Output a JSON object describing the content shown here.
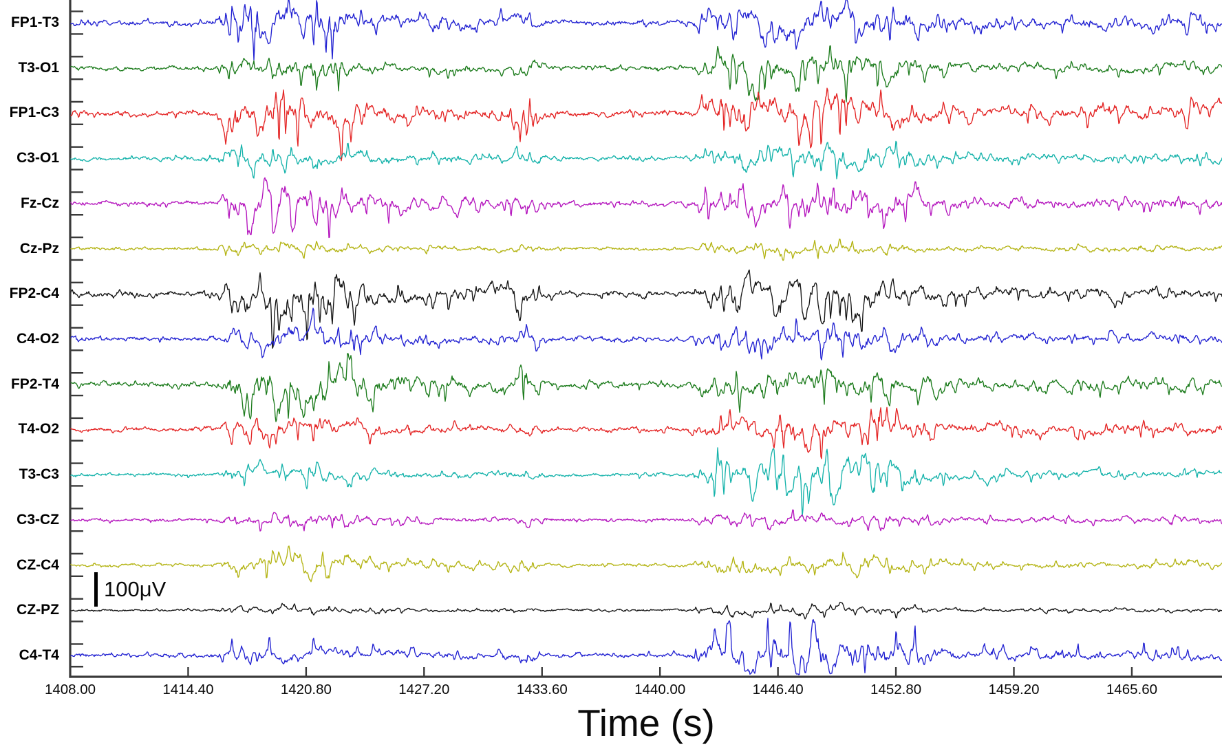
{
  "figure": {
    "xlabel": "Time (s)",
    "scale_bar_label": "100μV"
  },
  "layout_colors": {
    "background": "#ffffff",
    "axis": "#3a3a3a",
    "text": "#0a0a0a"
  },
  "chart_data": {
    "type": "line",
    "subtype": "multichannel-eeg-traces",
    "title": "",
    "xlabel": "Time (s)",
    "x_unit": "s",
    "x_range": [
      1408.0,
      1470.5
    ],
    "x_tick_values": [
      1408.0,
      1414.4,
      1420.8,
      1427.2,
      1433.6,
      1440.0,
      1446.4,
      1452.8,
      1459.2,
      1465.6
    ],
    "x_tick_labels": [
      "1408.00",
      "1414.40",
      "1420.80",
      "1427.20",
      "1433.60",
      "1440.00",
      "1446.40",
      "1452.80",
      "1459.20",
      "1465.60"
    ],
    "x_tick_step_s": 6.4,
    "grid": false,
    "legend": "none",
    "y_scale_bar": {
      "label": "100μV",
      "value_uV": 100
    },
    "channels": [
      {
        "label": "FP1-T3",
        "color": "#2323d2",
        "amp_quiet": 3.0,
        "amp_burst1": 34,
        "amp_burst2": 28,
        "amp_tail": 14.0,
        "spike_bias": 0.0,
        "late_spike": true
      },
      {
        "label": "T3-O1",
        "color": "#1d7c1d",
        "amp_quiet": 2.5,
        "amp_burst1": 20,
        "amp_burst2": 26,
        "amp_tail": 9.0,
        "spike_bias": -0.5,
        "late_spike": false
      },
      {
        "label": "FP1-C3",
        "color": "#e42525",
        "amp_quiet": 3.0,
        "amp_burst1": 38,
        "amp_burst2": 30,
        "amp_tail": 13.0,
        "spike_bias": -0.5,
        "late_spike": true
      },
      {
        "label": "C3-O1",
        "color": "#16b3ab",
        "amp_quiet": 2.5,
        "amp_burst1": 18,
        "amp_burst2": 20,
        "amp_tail": 8.0,
        "spike_bias": 0.0,
        "late_spike": false
      },
      {
        "label": "Fz-Cz",
        "color": "#b517be",
        "amp_quiet": 2.5,
        "amp_burst1": 32,
        "amp_burst2": 28,
        "amp_tail": 11.0,
        "spike_bias": -0.6,
        "late_spike": false
      },
      {
        "label": "Cz-Pz",
        "color": "#b4b414",
        "amp_quiet": 2.0,
        "amp_burst1": 9,
        "amp_burst2": 9,
        "amp_tail": 4.5,
        "spike_bias": 0.0,
        "late_spike": false
      },
      {
        "label": "FP2-C4",
        "color": "#151515",
        "amp_quiet": 3.0,
        "amp_burst1": 40,
        "amp_burst2": 26,
        "amp_tail": 12.0,
        "spike_bias": -0.6,
        "late_spike": false
      },
      {
        "label": "C4-O2",
        "color": "#2323d2",
        "amp_quiet": 2.5,
        "amp_burst1": 22,
        "amp_burst2": 19,
        "amp_tail": 8.5,
        "spike_bias": 0.0,
        "late_spike": false
      },
      {
        "label": "FP2-T4",
        "color": "#1d7c1d",
        "amp_quiet": 3.0,
        "amp_burst1": 38,
        "amp_burst2": 24,
        "amp_tail": 11.0,
        "spike_bias": -0.6,
        "late_spike": false
      },
      {
        "label": "T4-O2",
        "color": "#e42525",
        "amp_quiet": 2.5,
        "amp_burst1": 18,
        "amp_burst2": 24,
        "amp_tail": 11.0,
        "spike_bias": -0.3,
        "late_spike": false
      },
      {
        "label": "T3-C3",
        "color": "#16b3ab",
        "amp_quiet": 2.0,
        "amp_burst1": 14,
        "amp_burst2": 32,
        "amp_tail": 8.5,
        "spike_bias": -0.4,
        "late_spike": false
      },
      {
        "label": "C3-CZ",
        "color": "#b517be",
        "amp_quiet": 2.0,
        "amp_burst1": 11,
        "amp_burst2": 11,
        "amp_tail": 5.5,
        "spike_bias": -0.3,
        "late_spike": false
      },
      {
        "label": "CZ-C4",
        "color": "#b4b414",
        "amp_quiet": 2.0,
        "amp_burst1": 16,
        "amp_burst2": 12,
        "amp_tail": 5.5,
        "spike_bias": 0.0,
        "late_spike": false
      },
      {
        "label": "CZ-PZ",
        "color": "#151515",
        "amp_quiet": 1.5,
        "amp_burst1": 5.5,
        "amp_burst2": 7.5,
        "amp_tail": 3.5,
        "spike_bias": 0.0,
        "late_spike": false
      },
      {
        "label": "C4-T4",
        "color": "#2323d2",
        "amp_quiet": 2.5,
        "amp_burst1": 14,
        "amp_burst2": 30,
        "amp_tail": 10.0,
        "spike_bias": 0.8,
        "late_spike": false
      }
    ],
    "activity_profile": [
      [
        1408.0,
        0.05
      ],
      [
        1415.9,
        0.05
      ],
      [
        1416.6,
        0.8
      ],
      [
        1418.0,
        0.85
      ],
      [
        1419.3,
        1.0
      ],
      [
        1421.6,
        1.0
      ],
      [
        1423.2,
        0.8
      ],
      [
        1424.6,
        0.5
      ],
      [
        1426.5,
        0.35
      ],
      [
        1428.5,
        0.33
      ],
      [
        1430.5,
        0.3
      ],
      [
        1431.8,
        0.28
      ],
      [
        1432.4,
        0.7
      ],
      [
        1433.1,
        0.55
      ],
      [
        1433.8,
        0.1
      ],
      [
        1435.0,
        0.06
      ],
      [
        1441.6,
        0.06
      ],
      [
        1442.7,
        0.7
      ],
      [
        1444.0,
        0.95
      ],
      [
        1446.0,
        1.0
      ],
      [
        1449.5,
        1.0
      ],
      [
        1451.5,
        0.9
      ],
      [
        1453.5,
        0.75
      ],
      [
        1455.5,
        0.85
      ],
      [
        1458.0,
        0.8
      ],
      [
        1461.0,
        0.78
      ],
      [
        1464.5,
        0.8
      ],
      [
        1467.5,
        0.75
      ],
      [
        1468.3,
        0.95
      ],
      [
        1469.2,
        0.8
      ],
      [
        1470.5,
        0.75
      ]
    ],
    "events": [
      {
        "t_start": 1416.4,
        "t_end": 1425.0,
        "desc": "first high-amplitude spike-wave burst (all channels)"
      },
      {
        "t": 1432.5,
        "desc": "brief sharp biphasic transient"
      },
      {
        "t_start": 1434.0,
        "t_end": 1442.0,
        "desc": "quiet low-amplitude interval"
      },
      {
        "t_start": 1442.5,
        "t_end": 1453.0,
        "desc": "second high-amplitude burst (prominent on T3-C3, C4-T4)"
      },
      {
        "t": 1468.6,
        "desc": "late sharp downward transient on FP1-T3 and FP1-C3"
      }
    ]
  }
}
